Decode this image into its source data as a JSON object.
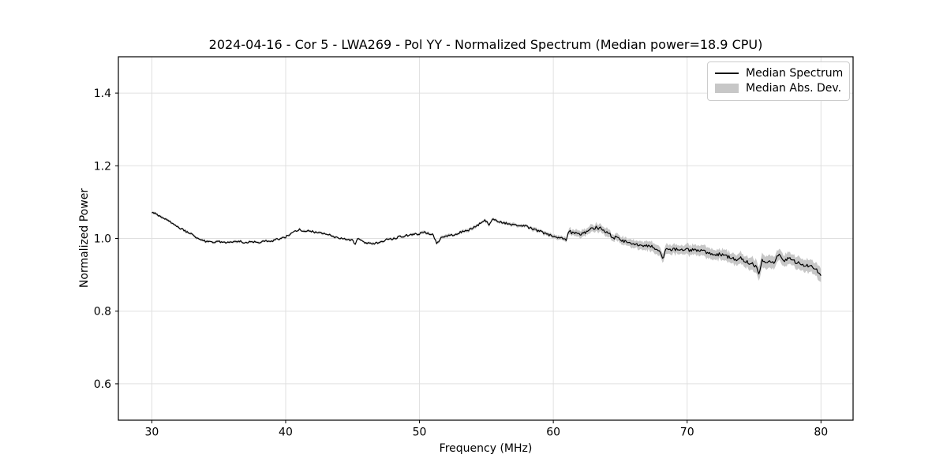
{
  "chart_data": {
    "type": "line",
    "title": "2024-04-16 - Cor 5 - LWA269 - Pol YY - Normalized Spectrum (Median power=18.9 CPU)",
    "xlabel": "Frequency (MHz)",
    "ylabel": "Normalized Power",
    "xlim": [
      27.5,
      82.4
    ],
    "ylim": [
      0.5,
      1.5
    ],
    "xticks": [
      30,
      40,
      50,
      60,
      70,
      80
    ],
    "xtick_labels": [
      "30",
      "40",
      "50",
      "60",
      "70",
      "80"
    ],
    "yticks": [
      0.6,
      0.8,
      1.0,
      1.2,
      1.4
    ],
    "ytick_labels": [
      "0.6",
      "0.8",
      "1.0",
      "1.2",
      "1.4"
    ],
    "grid": true,
    "legend": {
      "position": "upper right",
      "entries": [
        {
          "label": "Median Spectrum",
          "type": "line",
          "color": "#000000"
        },
        {
          "label": "Median Abs. Dev.",
          "type": "patch",
          "color": "#c7c7c7"
        }
      ]
    },
    "colors": {
      "line": "#000000",
      "band": "#c7c7c7",
      "grid": "#e0e0e0",
      "spine": "#000000"
    },
    "series": [
      {
        "name": "Median Spectrum",
        "x": [
          30,
          30.5,
          31,
          31.5,
          32,
          32.5,
          33,
          33.5,
          34,
          34.5,
          35,
          35.5,
          36,
          36.5,
          37,
          37.5,
          38,
          38.5,
          39,
          39.5,
          40,
          40.5,
          41,
          41.5,
          42,
          42.5,
          43,
          43.5,
          44,
          44.5,
          45,
          45.2,
          45.4,
          46,
          46.5,
          47,
          47.5,
          48,
          48.5,
          49,
          49.5,
          50,
          50.5,
          51,
          51.3,
          51.6,
          52,
          52.5,
          53,
          53.5,
          54,
          54.5,
          54.9,
          55.2,
          55.5,
          56,
          56.5,
          57,
          57.5,
          58,
          58.5,
          59,
          59.5,
          60,
          60.5,
          60.8,
          61,
          61.1,
          61.5,
          62,
          62.3,
          62.6,
          63,
          63.3,
          63.6,
          64,
          64.5,
          65,
          65.5,
          66,
          66.5,
          67,
          67.5,
          67.8,
          68,
          68.2,
          68.45,
          69,
          69.5,
          70,
          70.5,
          71,
          71.5,
          72,
          72.5,
          73,
          73.5,
          74,
          74.5,
          75,
          75.4,
          75.6,
          76,
          76.5,
          76.9,
          77.2,
          77.6,
          78,
          78.5,
          79,
          79.5,
          80
        ],
        "y": [
          1.072,
          1.064,
          1.054,
          1.042,
          1.031,
          1.021,
          1.011,
          1.0,
          0.992,
          0.99,
          0.992,
          0.99,
          0.991,
          0.993,
          0.989,
          0.99,
          0.99,
          0.992,
          0.994,
          0.998,
          1.004,
          1.015,
          1.024,
          1.021,
          1.019,
          1.016,
          1.012,
          1.006,
          1.0,
          0.998,
          0.994,
          0.985,
          1.0,
          0.988,
          0.986,
          0.99,
          0.996,
          1.0,
          1.004,
          1.008,
          1.011,
          1.013,
          1.017,
          1.01,
          0.986,
          1.002,
          1.007,
          1.01,
          1.016,
          1.021,
          1.028,
          1.04,
          1.051,
          1.039,
          1.053,
          1.045,
          1.042,
          1.037,
          1.036,
          1.033,
          1.025,
          1.02,
          1.012,
          1.006,
          1.002,
          0.998,
          0.994,
          1.02,
          1.016,
          1.01,
          1.013,
          1.025,
          1.027,
          1.03,
          1.026,
          1.015,
          1.003,
          0.998,
          0.991,
          0.988,
          0.983,
          0.98,
          0.976,
          0.972,
          0.962,
          0.947,
          0.97,
          0.971,
          0.972,
          0.969,
          0.969,
          0.965,
          0.962,
          0.958,
          0.955,
          0.951,
          0.942,
          0.946,
          0.935,
          0.928,
          0.905,
          0.944,
          0.934,
          0.937,
          0.961,
          0.934,
          0.945,
          0.937,
          0.93,
          0.925,
          0.919,
          0.901
        ]
      }
    ],
    "mad": {
      "name": "Median Abs. Dev.",
      "x": [
        30,
        40,
        50,
        55,
        58,
        60,
        61,
        61.4,
        63,
        65,
        67,
        68,
        70,
        72,
        74,
        75.5,
        77,
        78.5,
        79.5,
        80
      ],
      "halfwidth": [
        0.003,
        0.003,
        0.0035,
        0.004,
        0.0045,
        0.005,
        0.006,
        0.009,
        0.01,
        0.01,
        0.012,
        0.013,
        0.013,
        0.014,
        0.015,
        0.018,
        0.016,
        0.016,
        0.017,
        0.02
      ]
    },
    "noise": {
      "x": [
        30,
        60,
        61,
        80
      ],
      "amplitude": [
        0.003,
        0.003,
        0.005,
        0.0055
      ]
    }
  }
}
